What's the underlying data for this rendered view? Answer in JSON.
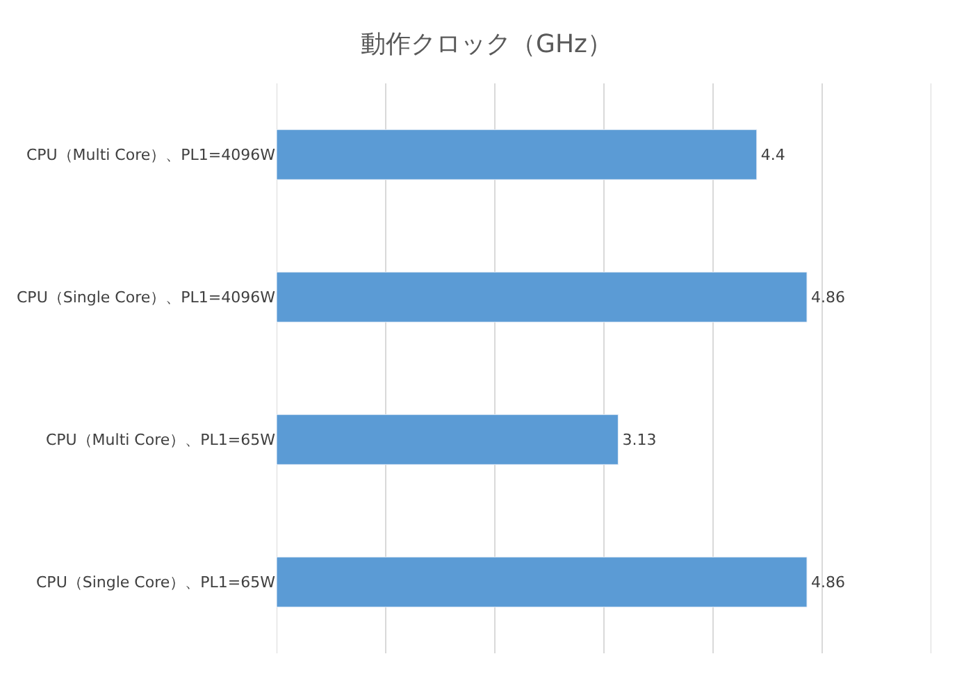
{
  "chart_data": {
    "type": "bar",
    "orientation": "horizontal",
    "title": "動作クロック（GHz）",
    "categories": [
      "CPU（Multi Core）、PL1=4096W",
      "CPU（Single Core）、PL1=4096W",
      "CPU（Multi Core）、PL1=65W",
      "CPU（Single Core）、PL1=65W"
    ],
    "values": [
      4.4,
      4.86,
      3.13,
      4.86
    ],
    "color": "#5b9bd5",
    "xlim": [
      0,
      6
    ],
    "xticks": [
      {
        "value": 0,
        "label": null
      },
      {
        "value": 1,
        "label": null
      },
      {
        "value": 2,
        "label": null
      },
      {
        "value": 3,
        "label": null
      },
      {
        "value": 4,
        "label": null
      },
      {
        "value": 5,
        "label": null
      },
      {
        "value": 6,
        "label": null
      }
    ],
    "tick_labels": "y",
    "grid": "x",
    "data_labels": true,
    "legend": false
  }
}
